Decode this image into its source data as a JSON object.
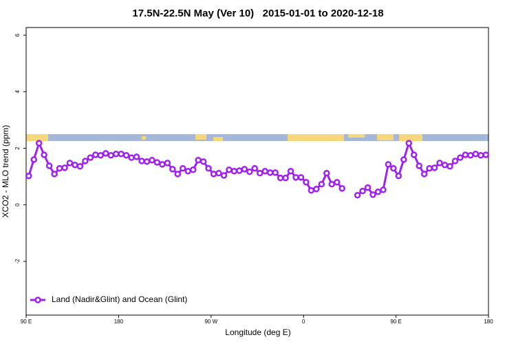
{
  "chart_data": {
    "type": "line",
    "title": "17.5N-22.5N May (Ver 10)   2015-01-01 to 2020-12-18",
    "x_label": "Longitude (deg E)",
    "y_label": "XCO2 - MLO trend (ppm)",
    "x": [
      92.5,
      97.5,
      102.5,
      107.5,
      112.5,
      117.5,
      122.5,
      127.5,
      132.5,
      137.5,
      142.5,
      147.5,
      152.5,
      157.5,
      162.5,
      167.5,
      172.5,
      177.5,
      182.5,
      187.5,
      192.5,
      197.5,
      202.5,
      207.5,
      212.5,
      217.5,
      222.5,
      227.5,
      232.5,
      237.5,
      242.5,
      247.5,
      252.5,
      257.5,
      262.5,
      267.5,
      272.5,
      277.5,
      282.5,
      287.5,
      292.5,
      297.5,
      302.5,
      307.5,
      312.5,
      317.5,
      322.5,
      327.5,
      332.5,
      337.5,
      342.5,
      347.5,
      352.5,
      357.5,
      362.5,
      367.5,
      372.5,
      377.5,
      382.5,
      387.5,
      392.5,
      397.5,
      402.5,
      407.5,
      412.5,
      417.5,
      422.5,
      427.5,
      432.5,
      437.5,
      442.5,
      447.5,
      452.5,
      457.5,
      462.5,
      467.5,
      472.5,
      477.5,
      482.5,
      487.5,
      492.5,
      497.5,
      502.5,
      507.5,
      512.5,
      517.5,
      522.5,
      527.5,
      532.5,
      537.5
    ],
    "series": [
      {
        "name": "Land (Nadir&Glint) and Ocean (Glint)",
        "color": "#a020f0",
        "values": [
          1.02,
          1.6,
          2.18,
          1.77,
          1.38,
          1.09,
          1.29,
          1.31,
          1.48,
          1.41,
          1.36,
          1.55,
          1.67,
          1.77,
          1.75,
          1.82,
          1.75,
          1.8,
          1.8,
          1.75,
          1.67,
          1.7,
          1.55,
          1.53,
          1.58,
          1.5,
          1.43,
          1.48,
          1.26,
          1.09,
          1.29,
          1.19,
          1.24,
          1.58,
          1.53,
          1.29,
          1.09,
          1.12,
          1.04,
          1.24,
          1.19,
          1.21,
          1.26,
          1.17,
          1.29,
          1.12,
          1.19,
          1.14,
          1.14,
          0.95,
          0.95,
          1.19,
          0.97,
          0.97,
          0.8,
          0.51,
          0.56,
          0.73,
          1.12,
          0.73,
          0.8,
          0.58,
          null,
          null,
          0.34,
          0.49,
          0.61,
          0.36,
          0.46,
          0.53,
          1.43,
          1.29,
          1.02,
          1.6,
          2.18,
          1.77,
          1.38,
          1.09,
          1.29,
          1.31,
          1.48,
          1.41,
          1.36,
          1.55,
          1.67,
          1.77,
          1.75,
          1.8,
          1.75,
          1.77
        ]
      }
    ],
    "xlim": [
      90,
      540
    ],
    "xticks": [
      {
        "value": 90,
        "label": "90 E"
      },
      180,
      {
        "value": 270,
        "label": "90 W"
      },
      {
        "value": 360,
        "label": "0"
      },
      {
        "value": 450,
        "label": "90 E"
      },
      {
        "value": 540,
        "label": "180"
      }
    ],
    "ylim": [
      -3.9,
      6.27
    ],
    "yticks": [
      -2,
      0,
      2,
      4,
      6
    ],
    "legend": "bottom-left"
  }
}
